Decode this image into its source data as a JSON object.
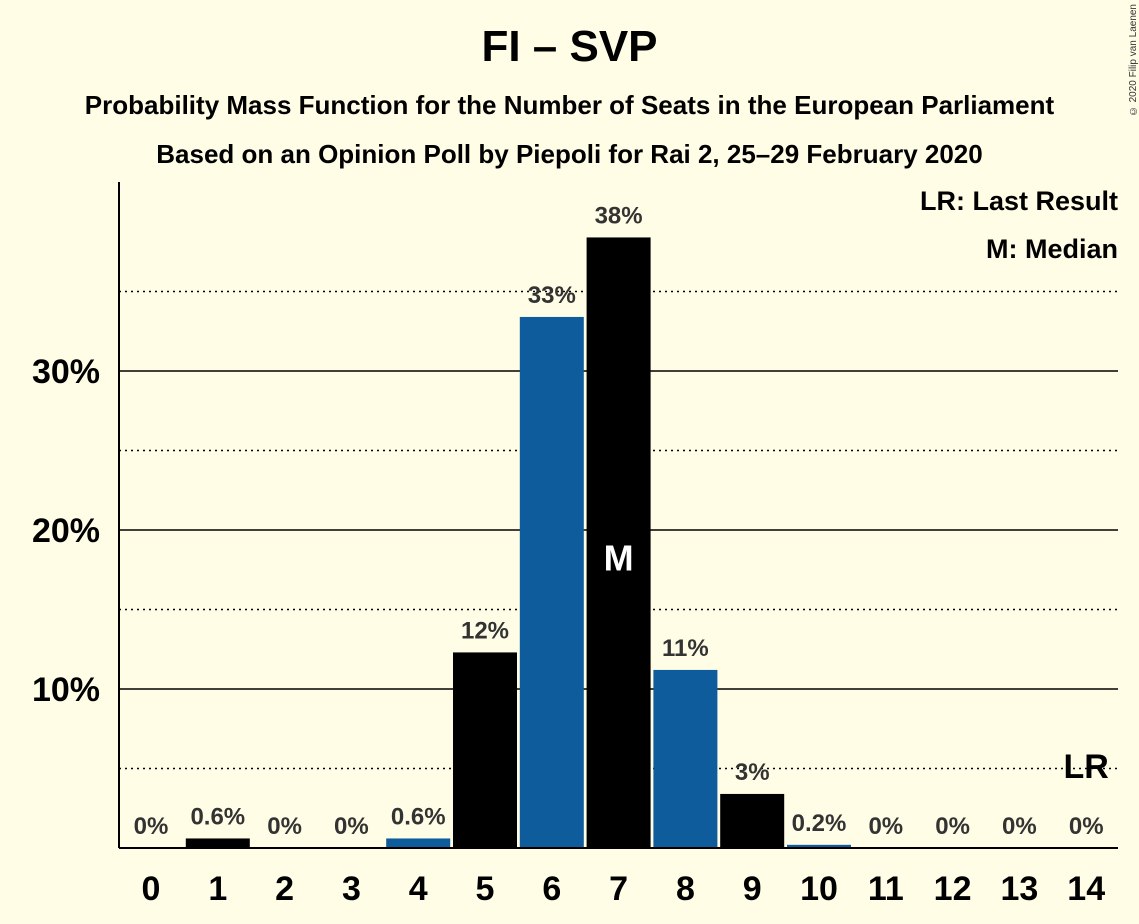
{
  "title": "FI – SVP",
  "subtitle_1": "Probability Mass Function for the Number of Seats in the European Parliament",
  "subtitle_2": "Based on an Opinion Poll by Piepoli for Rai 2, 25–29 February 2020",
  "copyright": "© 2020 Filip van Laenen",
  "legend": {
    "last_result": "LR: Last Result",
    "median": "M: Median"
  },
  "colors": {
    "background": "#FFFDE5",
    "black_bar": "#000000",
    "blue_bar": "#0E5C9B"
  },
  "chart_data": {
    "type": "bar",
    "categories": [
      "0",
      "1",
      "2",
      "3",
      "4",
      "5",
      "6",
      "7",
      "8",
      "9",
      "10",
      "11",
      "12",
      "13",
      "14"
    ],
    "values": [
      0,
      0.6,
      0,
      0,
      0.6,
      12.3,
      33.4,
      38.4,
      11.2,
      3.4,
      0.2,
      0,
      0,
      0,
      0
    ],
    "value_labels": [
      "0%",
      "0.6%",
      "0%",
      "0%",
      "0.6%",
      "12%",
      "33%",
      "38%",
      "11%",
      "3%",
      "0.2%",
      "0%",
      "0%",
      "0%",
      "0%"
    ],
    "bar_colors": [
      "black",
      "black",
      "blue",
      "black",
      "blue",
      "black",
      "blue",
      "black",
      "blue",
      "black",
      "blue",
      "black",
      "blue",
      "black",
      "blue"
    ],
    "yticks": [
      10,
      20,
      30
    ],
    "ytick_labels": [
      "10%",
      "20%",
      "30%"
    ],
    "minor_gridlines": [
      5,
      15,
      25,
      35
    ],
    "ylim": [
      0,
      42
    ],
    "median_category": "7",
    "median_label": "M",
    "last_result_category": "14",
    "last_result_label": "LR",
    "legend_position": "top-right",
    "xlabel": "",
    "ylabel": ""
  }
}
